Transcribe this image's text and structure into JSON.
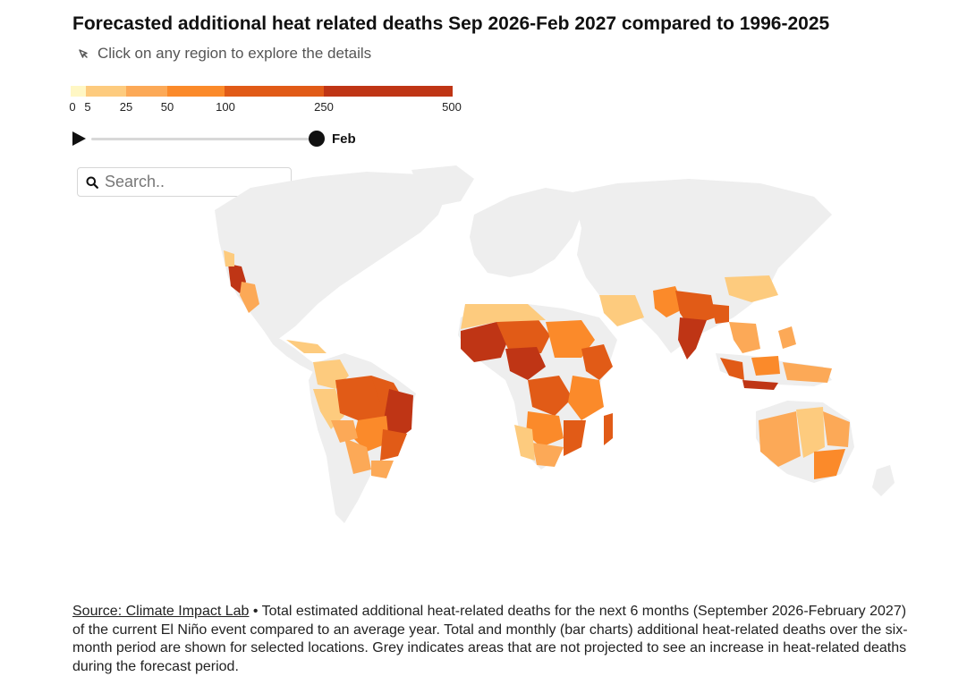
{
  "title": "Forecasted additional heat related deaths Sep 2026-Feb 2027 compared to 1996-2025",
  "hint": "Click on any region to explore the details",
  "legend": {
    "ticks": [
      "0",
      "5",
      "25",
      "50",
      "100",
      "250",
      "500"
    ],
    "colors": [
      "#fff7c4",
      "#fdcb7e",
      "#fca957",
      "#fb8a2a",
      "#e15b17",
      "#bf3515"
    ]
  },
  "timeline": {
    "month": "Feb"
  },
  "search": {
    "placeholder": "Search.."
  },
  "map": {
    "no_increase_color": "#eeeeee"
  },
  "footer": {
    "source_link": "Source: Climate Impact Lab",
    "text": " • Total estimated additional heat-related deaths for the next 6 months (September 2026-February 2027) of the current El Niño event compared to an average year. Total and monthly (bar charts) additional heat-related deaths over the six-month period are shown for selected locations. Grey indicates areas that are not projected to see an increase in heat-related deaths during the forecast period."
  }
}
